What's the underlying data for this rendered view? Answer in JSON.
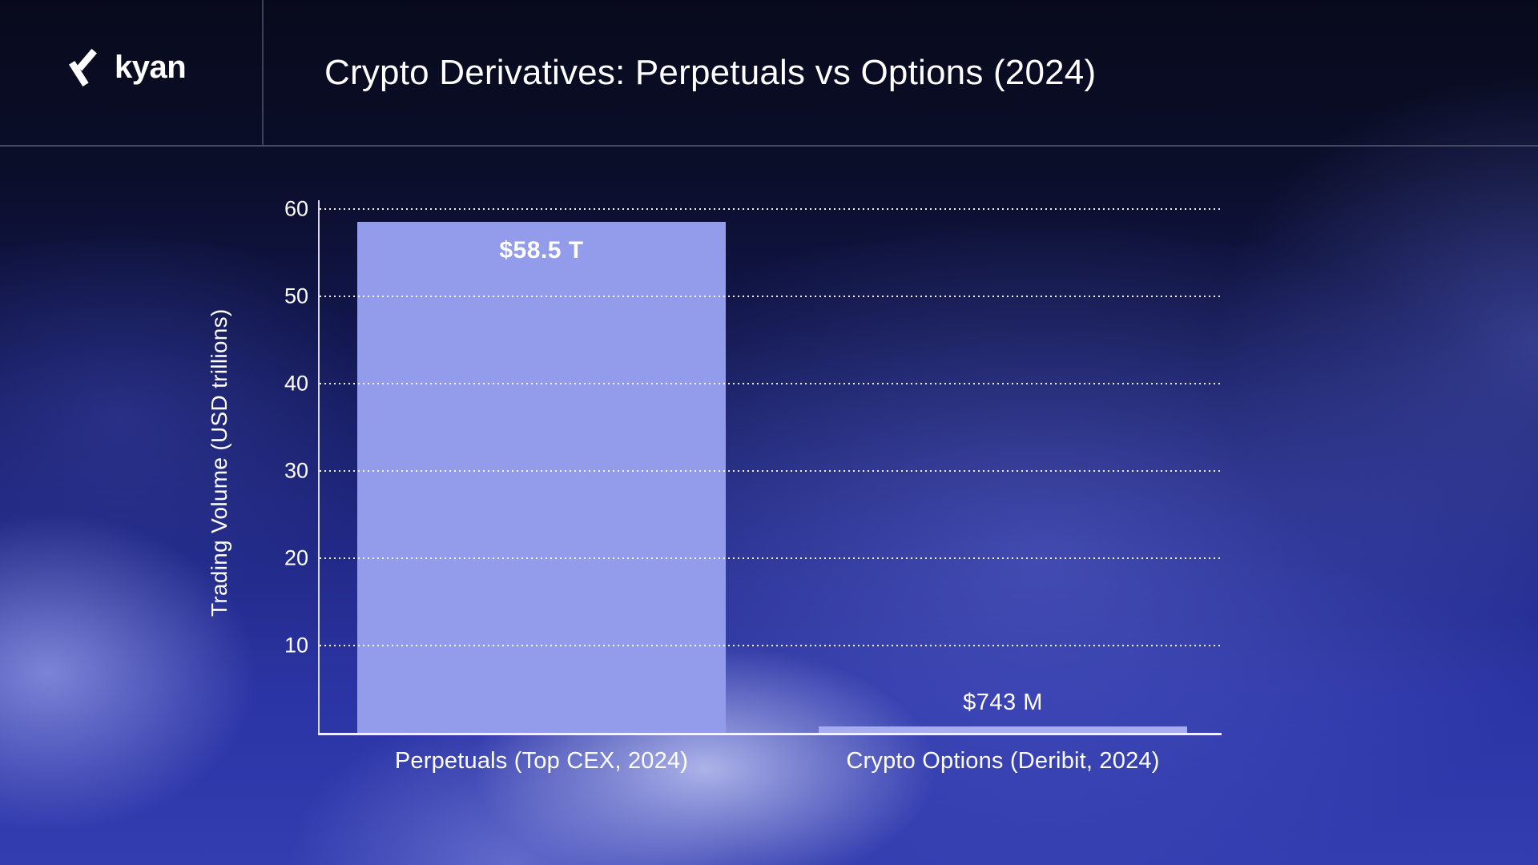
{
  "header": {
    "brand": "kyan",
    "title": "Crypto Derivatives: Perpetuals vs Options (2024)"
  },
  "chart_data": {
    "type": "bar",
    "title": "Crypto Derivatives: Perpetuals vs Options (2024)",
    "categories": [
      "Perpetuals (Top CEX, 2024)",
      "Crypto Options (Deribit, 2024)"
    ],
    "values": [
      58.5,
      0.000743
    ],
    "value_labels": [
      "$58.5 T",
      "$743 M"
    ],
    "ylabel": "Trading Volume (USD trillions)",
    "xlabel": "",
    "ylim": [
      0,
      60
    ],
    "yticks": [
      10,
      20,
      30,
      40,
      50,
      60
    ],
    "grid": "horizontal-dotted",
    "legend_position": "none"
  },
  "colors": {
    "bar_primary": "#939CEA",
    "bar_secondary": "#A5ADF0",
    "text": "#FFFFFF",
    "header_border": "#454A63",
    "background_top": "#080A1C",
    "background_bottom": "#333DAF"
  }
}
